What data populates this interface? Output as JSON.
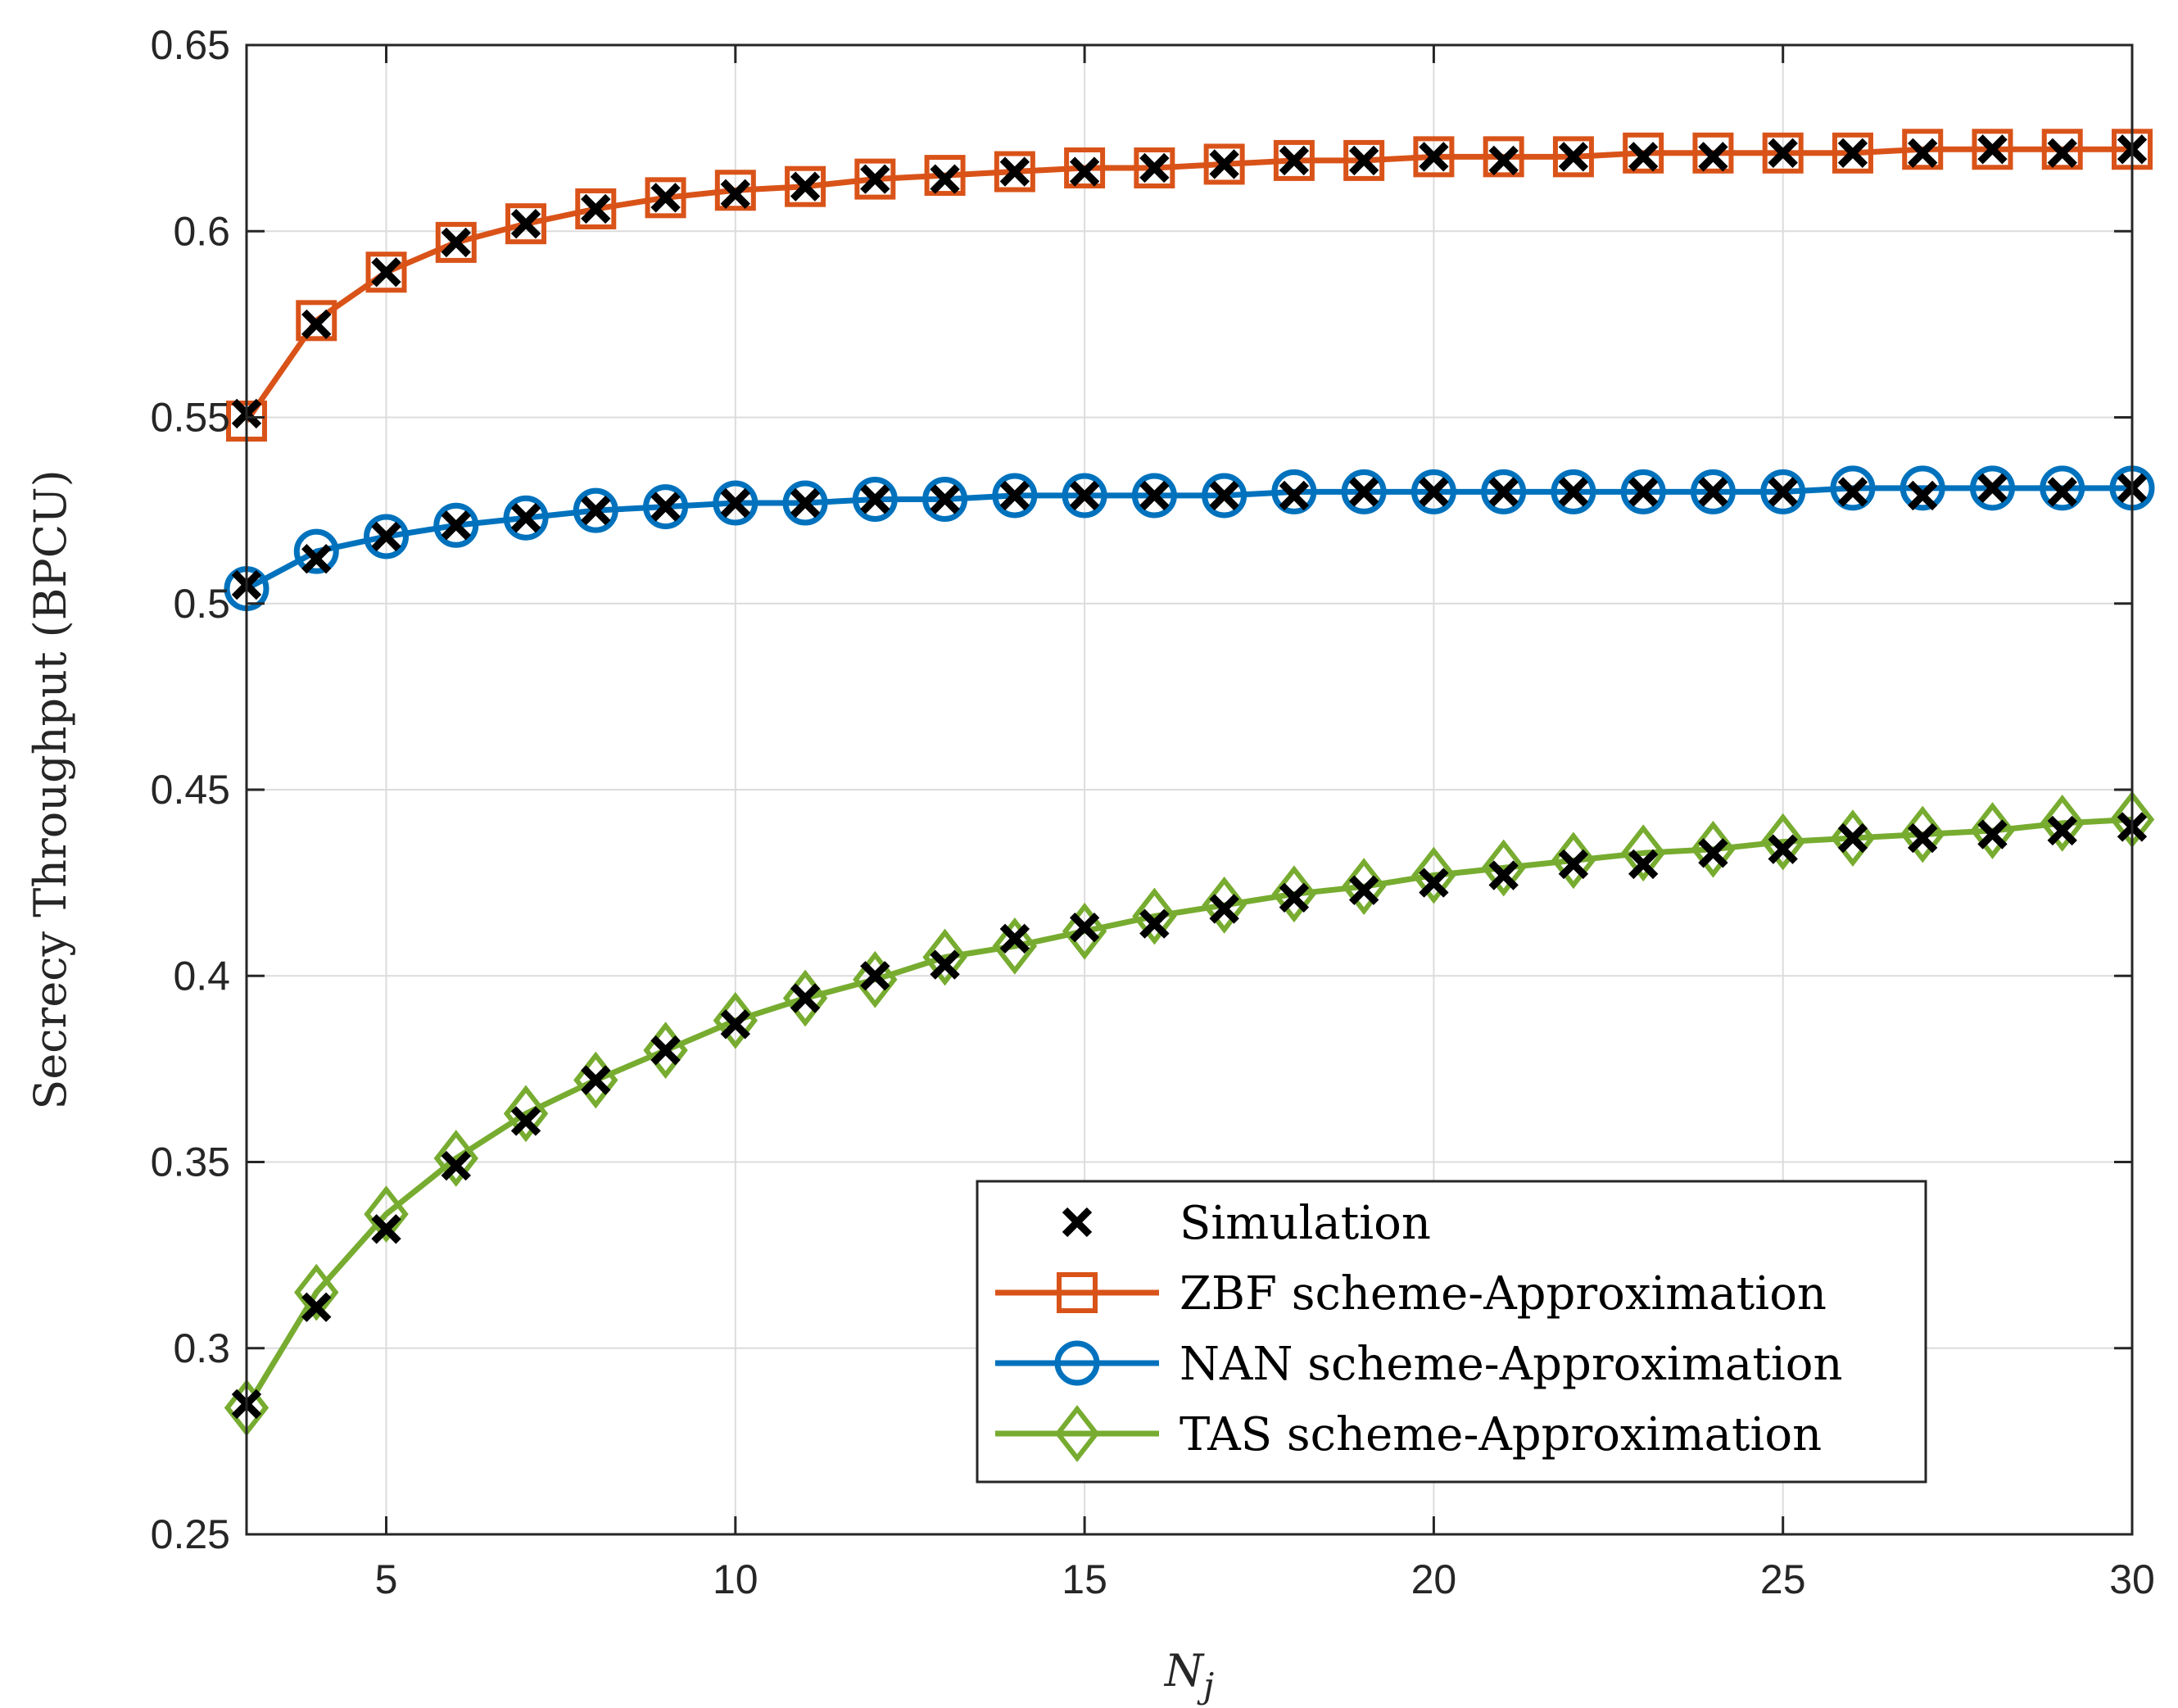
{
  "chart_data": {
    "type": "line",
    "title": "",
    "xlabel_main": "N",
    "xlabel_sub": "j",
    "ylabel": "Secrecy Throughput (BPCU)",
    "xlim": [
      3,
      30
    ],
    "ylim": [
      0.25,
      0.65
    ],
    "xticks": [
      5,
      10,
      15,
      20,
      25,
      30
    ],
    "yticks": [
      0.25,
      0.3,
      0.35,
      0.4,
      0.45,
      0.5,
      0.55,
      0.6,
      0.65
    ],
    "ytick_labels": [
      "0.25",
      "0.3",
      "0.35",
      "0.4",
      "0.45",
      "0.5",
      "0.55",
      "0.6",
      "0.65"
    ],
    "grid": true,
    "legend_position": "bottom-right",
    "x": [
      3,
      4,
      5,
      6,
      7,
      8,
      9,
      10,
      11,
      12,
      13,
      14,
      15,
      16,
      17,
      18,
      19,
      20,
      21,
      22,
      23,
      24,
      25,
      26,
      27,
      28,
      29,
      30
    ],
    "series": [
      {
        "name": "ZBF scheme-Approximation",
        "color": "#D95319",
        "marker": "square",
        "values": [
          0.549,
          0.576,
          0.589,
          0.597,
          0.602,
          0.606,
          0.609,
          0.611,
          0.612,
          0.614,
          0.615,
          0.616,
          0.617,
          0.617,
          0.618,
          0.619,
          0.619,
          0.62,
          0.62,
          0.62,
          0.621,
          0.621,
          0.621,
          0.621,
          0.622,
          0.622,
          0.622,
          0.622
        ]
      },
      {
        "name": "NAN scheme-Approximation",
        "color": "#0072BD",
        "marker": "circle",
        "values": [
          0.504,
          0.514,
          0.518,
          0.521,
          0.523,
          0.525,
          0.526,
          0.527,
          0.527,
          0.528,
          0.528,
          0.529,
          0.529,
          0.529,
          0.529,
          0.53,
          0.53,
          0.53,
          0.53,
          0.53,
          0.53,
          0.53,
          0.53,
          0.531,
          0.531,
          0.531,
          0.531,
          0.531
        ]
      },
      {
        "name": "TAS scheme-Approximation",
        "color": "#77AC30",
        "marker": "diamond",
        "values": [
          0.284,
          0.315,
          0.336,
          0.351,
          0.363,
          0.372,
          0.38,
          0.388,
          0.394,
          0.399,
          0.405,
          0.408,
          0.412,
          0.416,
          0.419,
          0.422,
          0.424,
          0.427,
          0.429,
          0.431,
          0.433,
          0.434,
          0.436,
          0.437,
          0.438,
          0.439,
          0.441,
          0.442
        ]
      },
      {
        "name": "Simulation",
        "color": "#000000",
        "marker": "x",
        "groups": [
          [
            0.551,
            0.575,
            0.589,
            0.597,
            0.602,
            0.606,
            0.609,
            0.61,
            0.612,
            0.614,
            0.614,
            0.616,
            0.616,
            0.617,
            0.618,
            0.619,
            0.619,
            0.62,
            0.619,
            0.62,
            0.62,
            0.62,
            0.621,
            0.621,
            0.621,
            0.622,
            0.621,
            0.622
          ],
          [
            0.505,
            0.512,
            0.518,
            0.521,
            0.523,
            0.525,
            0.526,
            0.527,
            0.527,
            0.528,
            0.528,
            0.529,
            0.529,
            0.529,
            0.529,
            0.529,
            0.53,
            0.53,
            0.53,
            0.53,
            0.53,
            0.53,
            0.53,
            0.53,
            0.529,
            0.531,
            0.53,
            0.531
          ],
          [
            0.285,
            0.311,
            0.332,
            0.349,
            0.361,
            0.372,
            0.38,
            0.387,
            0.394,
            0.4,
            0.403,
            0.41,
            0.413,
            0.414,
            0.418,
            0.421,
            0.423,
            0.425,
            0.427,
            0.43,
            0.43,
            0.433,
            0.434,
            0.437,
            0.437,
            0.438,
            0.439,
            0.44
          ]
        ]
      }
    ],
    "legend": [
      {
        "label": "Simulation",
        "marker": "x",
        "color": "#000000"
      },
      {
        "label": "ZBF scheme-Approximation",
        "marker": "square",
        "color": "#D95319"
      },
      {
        "label": "NAN scheme-Approximation",
        "marker": "circle",
        "color": "#0072BD"
      },
      {
        "label": "TAS scheme-Approximation",
        "marker": "diamond",
        "color": "#77AC30"
      }
    ]
  }
}
